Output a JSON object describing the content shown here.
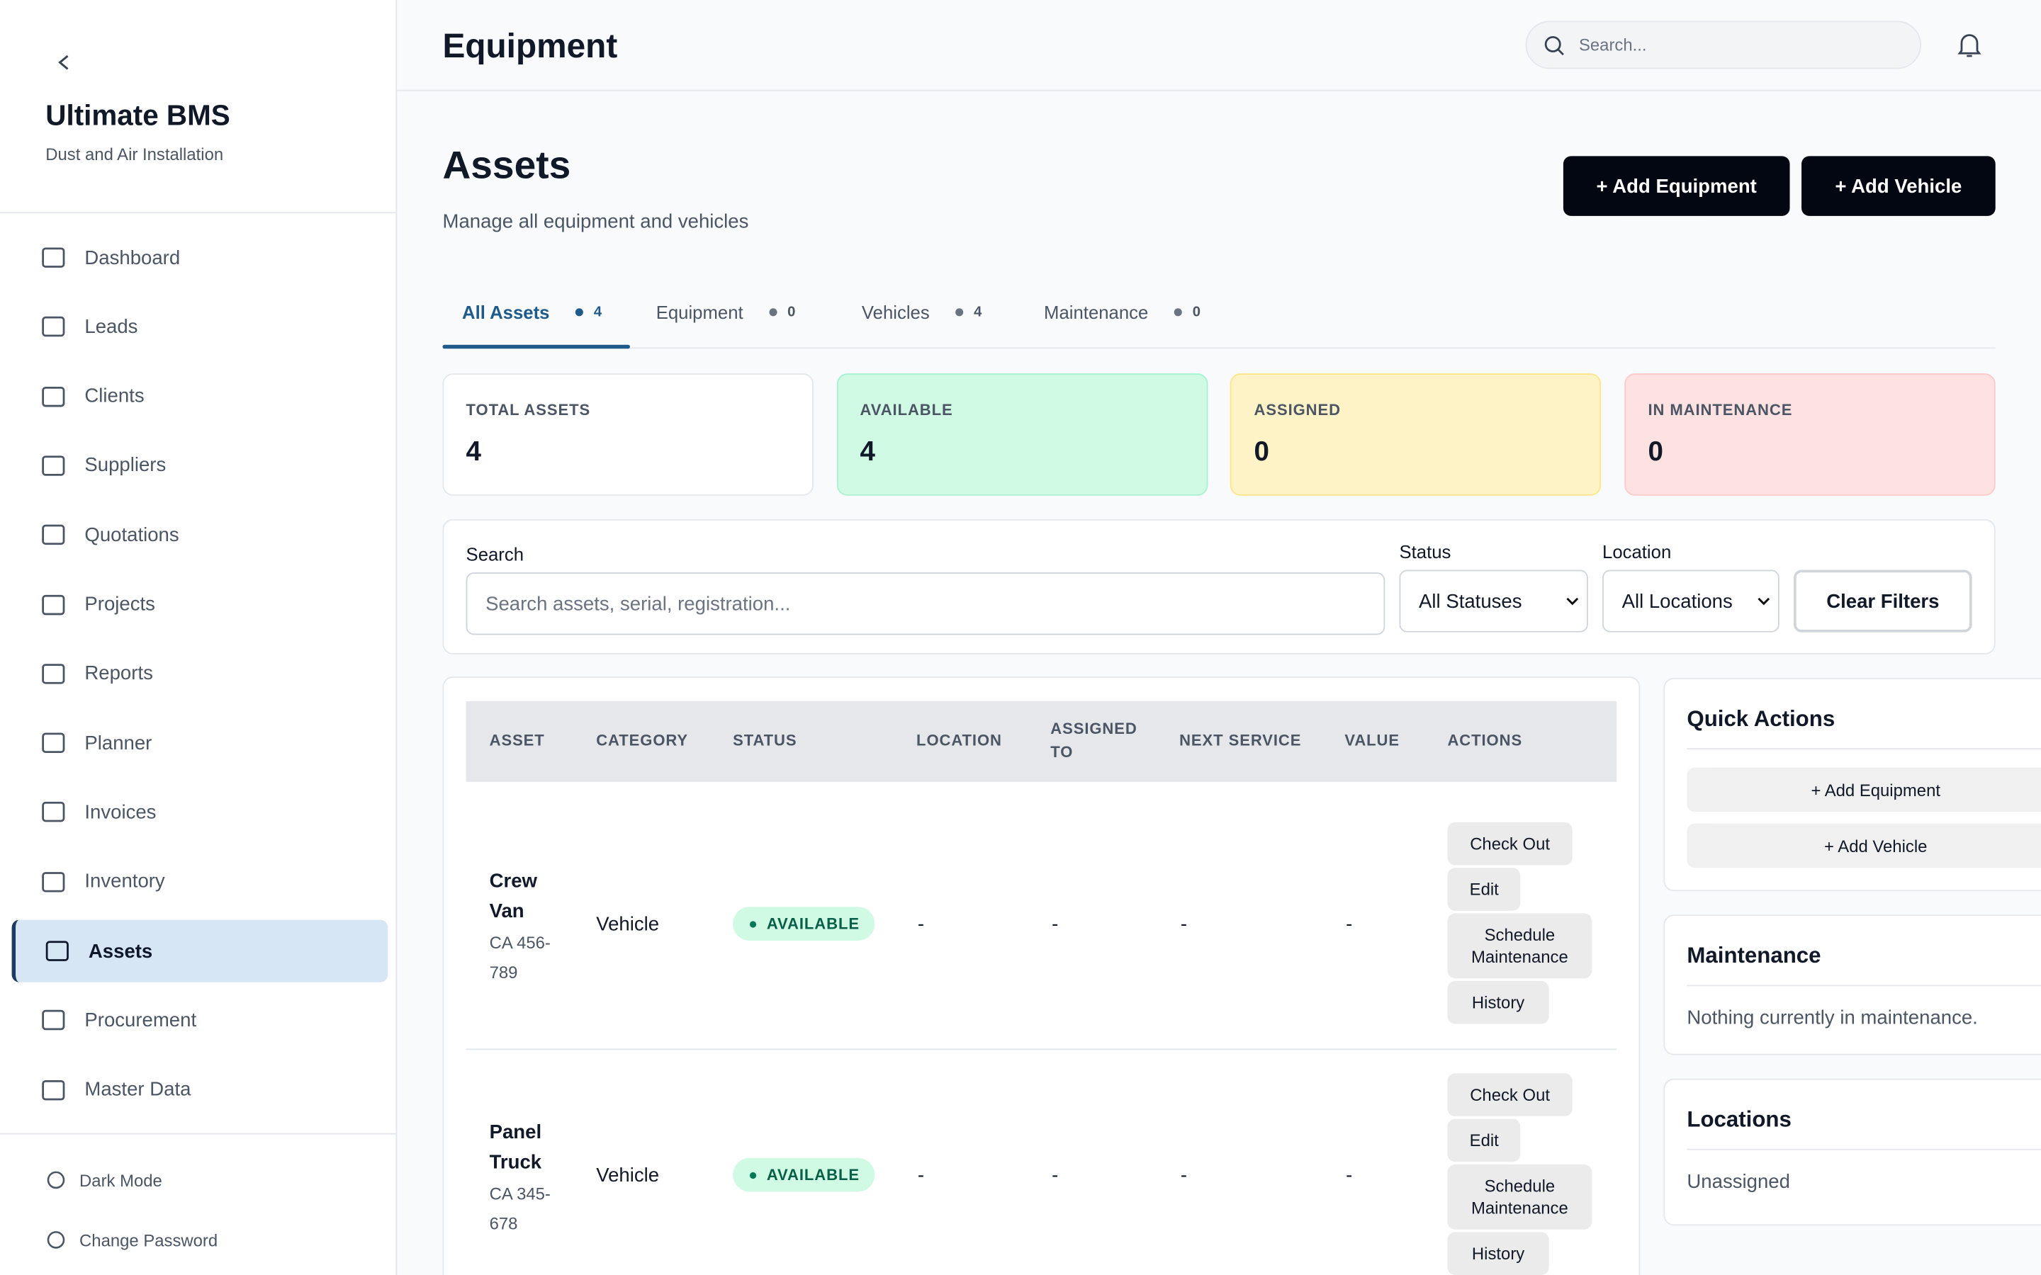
{
  "sidebar": {
    "app_name": "Ultimate BMS",
    "subtitle": "Dust and Air Installation",
    "nav": [
      "Dashboard",
      "Leads",
      "Clients",
      "Suppliers",
      "Quotations",
      "Projects",
      "Reports",
      "Planner",
      "Invoices",
      "Inventory",
      "Assets",
      "Procurement",
      "Master Data"
    ],
    "footer": [
      "Dark Mode",
      "Change Password"
    ]
  },
  "header": {
    "title": "Equipment",
    "search_placeholder": "Search..."
  },
  "page": {
    "title": "Assets",
    "subtitle": "Manage all equipment and vehicles",
    "buttons": [
      "+ Add Equipment",
      "+ Add Vehicle"
    ]
  },
  "tabs": [
    {
      "label": "All Assets",
      "count": 4
    },
    {
      "label": "Equipment",
      "count": 0
    },
    {
      "label": "Vehicles",
      "count": 4
    },
    {
      "label": "Maintenance",
      "count": 0
    }
  ],
  "stats": [
    {
      "label": "TOTAL ASSETS",
      "value": 4
    },
    {
      "label": "AVAILABLE",
      "value": 4
    },
    {
      "label": "ASSIGNED",
      "value": 0
    },
    {
      "label": "IN MAINTENANCE",
      "value": 0
    }
  ],
  "filters": {
    "search_label": "Search",
    "search_placeholder": "Search assets, serial, registration...",
    "status_label": "Status",
    "status_value": "All Statuses",
    "location_label": "Location",
    "location_value": "All Locations",
    "clear": "Clear Filters"
  },
  "table": {
    "columns": [
      "ASSET",
      "CATEGORY",
      "STATUS",
      "LOCATION",
      "ASSIGNED TO",
      "NEXT SERVICE",
      "VALUE",
      "ACTIONS"
    ],
    "rows": [
      {
        "name": "Crew Van",
        "id": "CA 456-789",
        "category": "Vehicle",
        "status": "AVAILABLE",
        "location": "-",
        "assigned_to": "-",
        "next_service": "-",
        "value": "-",
        "actions": [
          "Check Out",
          "Edit",
          "Schedule Maintenance",
          "History"
        ]
      },
      {
        "name": "Panel Truck",
        "id": "CA 345-678",
        "category": "Vehicle",
        "status": "AVAILABLE",
        "location": "-",
        "assigned_to": "-",
        "next_service": "-",
        "value": "-",
        "actions": [
          "Check Out",
          "Edit",
          "Schedule Maintenance",
          "History"
        ]
      }
    ]
  },
  "quick_actions": {
    "title": "Quick Actions",
    "buttons": [
      "+ Add Equipment",
      "+ Add Vehicle"
    ]
  },
  "maintenance": {
    "title": "Maintenance",
    "text": "Nothing currently in maintenance."
  },
  "locations": {
    "title": "Locations",
    "items": [
      "Unassigned"
    ]
  }
}
